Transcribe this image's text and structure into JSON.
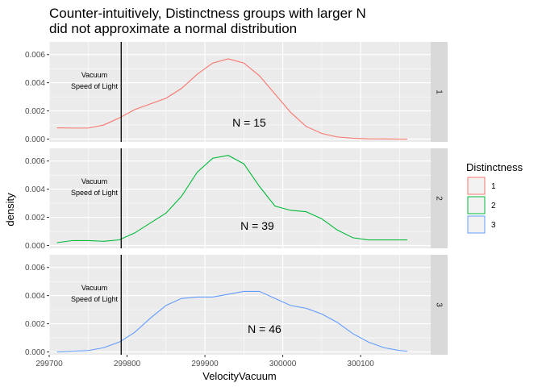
{
  "chart_data": {
    "type": "line",
    "title_lines": [
      "Counter-intuitively, Distinctness groups with larger N",
      "did not approximate a normal distribution"
    ],
    "xlabel": "VelocityVacuum",
    "ylabel": "density",
    "xlim": [
      299700,
      300190
    ],
    "ylim": [
      -0.0002,
      0.0069
    ],
    "x_ticks": [
      299700,
      299800,
      299900,
      300000,
      300100
    ],
    "x_tick_labels": [
      "299700",
      "299800",
      "299900",
      "300000",
      "300100"
    ],
    "y_ticks": [
      0,
      0.002,
      0.004,
      0.006
    ],
    "y_tick_labels": [
      "0.000",
      "0.002",
      "0.004",
      "0.006"
    ],
    "grid": true,
    "legend": {
      "title": "Distinctness",
      "position": "right",
      "entries": [
        "1",
        "2",
        "3"
      ]
    },
    "vline": {
      "x": 299792.458,
      "label_lines": [
        "Vacuum",
        "Speed of Light"
      ]
    },
    "series": [
      {
        "name": "1",
        "color": "#F8766D",
        "strip_label": "1",
        "n_label": "N =  15",
        "x": [
          299710,
          299730,
          299750,
          299770,
          299790,
          299810,
          299830,
          299850,
          299870,
          299890,
          299910,
          299930,
          299950,
          299970,
          299990,
          300010,
          300030,
          300050,
          300070,
          300090,
          300110,
          300130,
          300150,
          300160
        ],
        "y": [
          0.0008,
          0.00078,
          0.00078,
          0.001,
          0.0015,
          0.0021,
          0.0025,
          0.0029,
          0.0036,
          0.0046,
          0.0054,
          0.0057,
          0.0054,
          0.0045,
          0.0032,
          0.0019,
          0.0009,
          0.0004,
          0.00015,
          6e-05,
          2e-05,
          1e-05,
          0.0,
          0.0
        ]
      },
      {
        "name": "2",
        "color": "#00BA38",
        "strip_label": "2",
        "n_label": "N =  39",
        "x": [
          299710,
          299730,
          299750,
          299770,
          299790,
          299810,
          299830,
          299850,
          299870,
          299890,
          299910,
          299930,
          299950,
          299970,
          299990,
          300010,
          300030,
          300050,
          300070,
          300090,
          300110,
          300130,
          300150,
          300160
        ],
        "y": [
          0.0002,
          0.00035,
          0.00035,
          0.0003,
          0.0004,
          0.0009,
          0.0016,
          0.0023,
          0.0035,
          0.0052,
          0.0062,
          0.0064,
          0.0058,
          0.0042,
          0.0028,
          0.0025,
          0.0024,
          0.0019,
          0.0011,
          0.00055,
          0.0004,
          0.0004,
          0.0004,
          0.0004
        ]
      },
      {
        "name": "3",
        "color": "#619CFF",
        "strip_label": "3",
        "n_label": "N =  46",
        "x": [
          299710,
          299730,
          299750,
          299770,
          299790,
          299810,
          299830,
          299850,
          299870,
          299890,
          299910,
          299930,
          299950,
          299970,
          299990,
          300010,
          300030,
          300050,
          300070,
          300090,
          300110,
          300130,
          300150,
          300160
        ],
        "y": [
          0.0,
          5e-05,
          0.0001,
          0.0003,
          0.0007,
          0.0014,
          0.0024,
          0.0033,
          0.0038,
          0.0039,
          0.0039,
          0.0041,
          0.0043,
          0.0043,
          0.0038,
          0.0033,
          0.0031,
          0.0027,
          0.0021,
          0.0013,
          0.0007,
          0.0003,
          0.0001,
          5e-05
        ]
      }
    ]
  }
}
